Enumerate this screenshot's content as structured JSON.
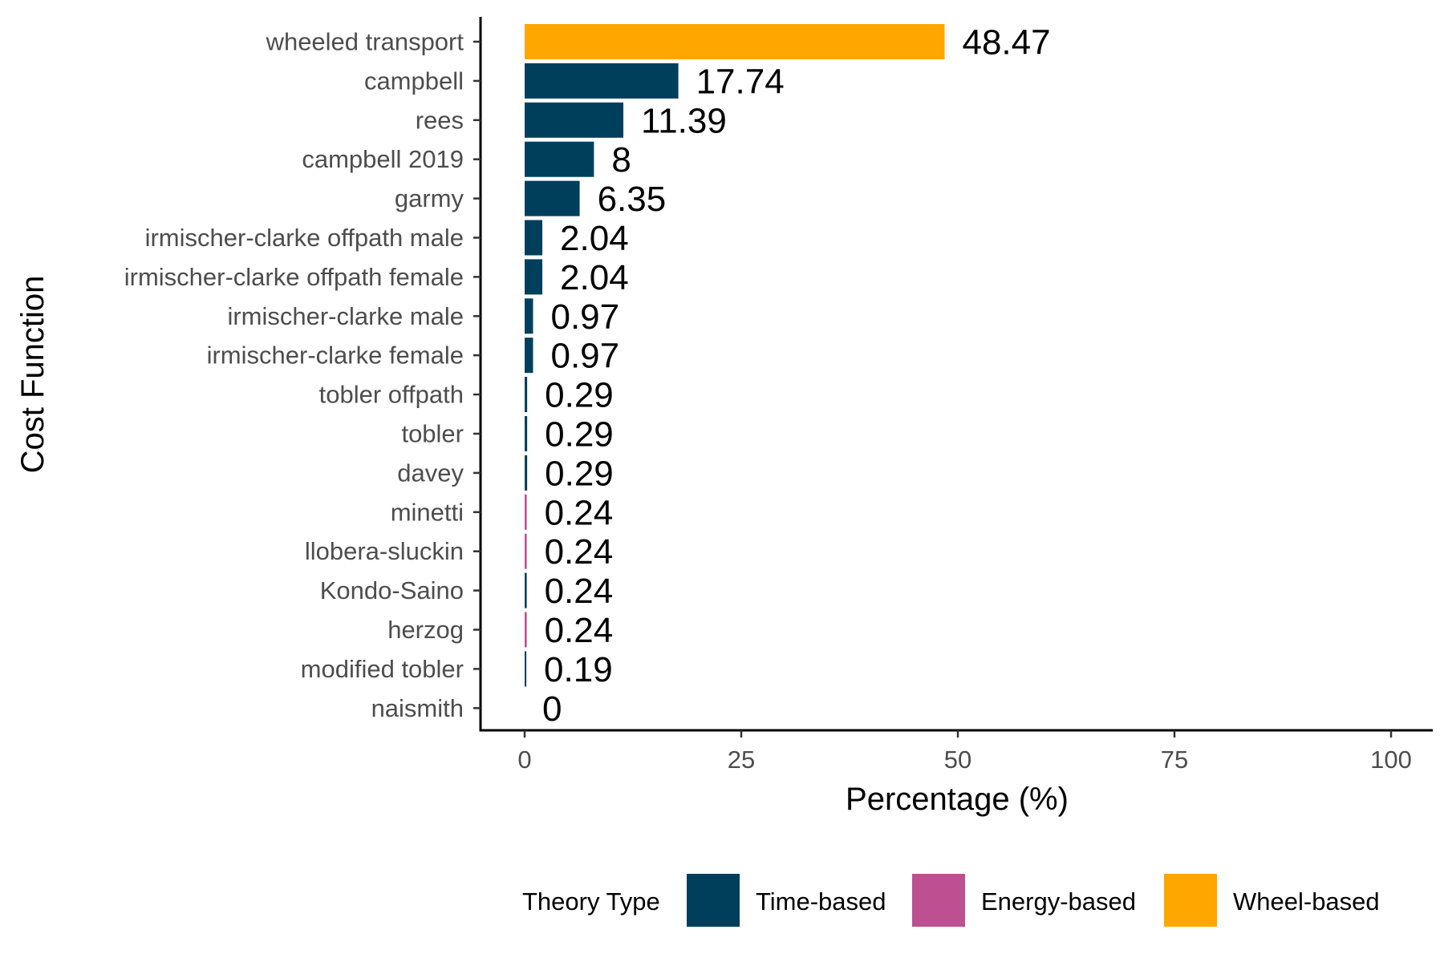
{
  "chart_data": {
    "type": "bar",
    "orientation": "horizontal",
    "categories": [
      "wheeled transport",
      "campbell",
      "rees",
      "campbell 2019",
      "garmy",
      "irmischer-clarke offpath male",
      "irmischer-clarke offpath female",
      "irmischer-clarke male",
      "irmischer-clarke female",
      "tobler offpath",
      "tobler",
      "davey",
      "minetti",
      "llobera-sluckin",
      "Kondo-Saino",
      "herzog",
      "modified tobler",
      "naismith"
    ],
    "values": [
      48.47,
      17.74,
      11.39,
      8,
      6.35,
      2.04,
      2.04,
      0.97,
      0.97,
      0.29,
      0.29,
      0.29,
      0.24,
      0.24,
      0.24,
      0.24,
      0.19,
      0
    ],
    "value_labels": [
      "48.47",
      "17.74",
      "11.39",
      "8",
      "6.35",
      "2.04",
      "2.04",
      "0.97",
      "0.97",
      "0.29",
      "0.29",
      "0.29",
      "0.24",
      "0.24",
      "0.24",
      "0.24",
      "0.19",
      "0"
    ],
    "types": [
      "Wheel-based",
      "Time-based",
      "Time-based",
      "Time-based",
      "Time-based",
      "Time-based",
      "Time-based",
      "Time-based",
      "Time-based",
      "Time-based",
      "Time-based",
      "Time-based",
      "Energy-based",
      "Energy-based",
      "Time-based",
      "Energy-based",
      "Time-based",
      "Time-based"
    ],
    "xlabel": "Percentage (%)",
    "ylabel": "Cost Function",
    "xlim": [
      0,
      100
    ],
    "x_ticks": [
      0,
      25,
      50,
      75,
      100
    ],
    "x_tick_labels": [
      "0",
      "25",
      "50",
      "75",
      "100"
    ],
    "grid": false,
    "legend": {
      "title": "Theory Type",
      "position": "bottom",
      "entries": [
        {
          "label": "Time-based",
          "color": "#003f5c"
        },
        {
          "label": "Energy-based",
          "color": "#bc5090"
        },
        {
          "label": "Wheel-based",
          "color": "#ffa600"
        }
      ]
    }
  }
}
